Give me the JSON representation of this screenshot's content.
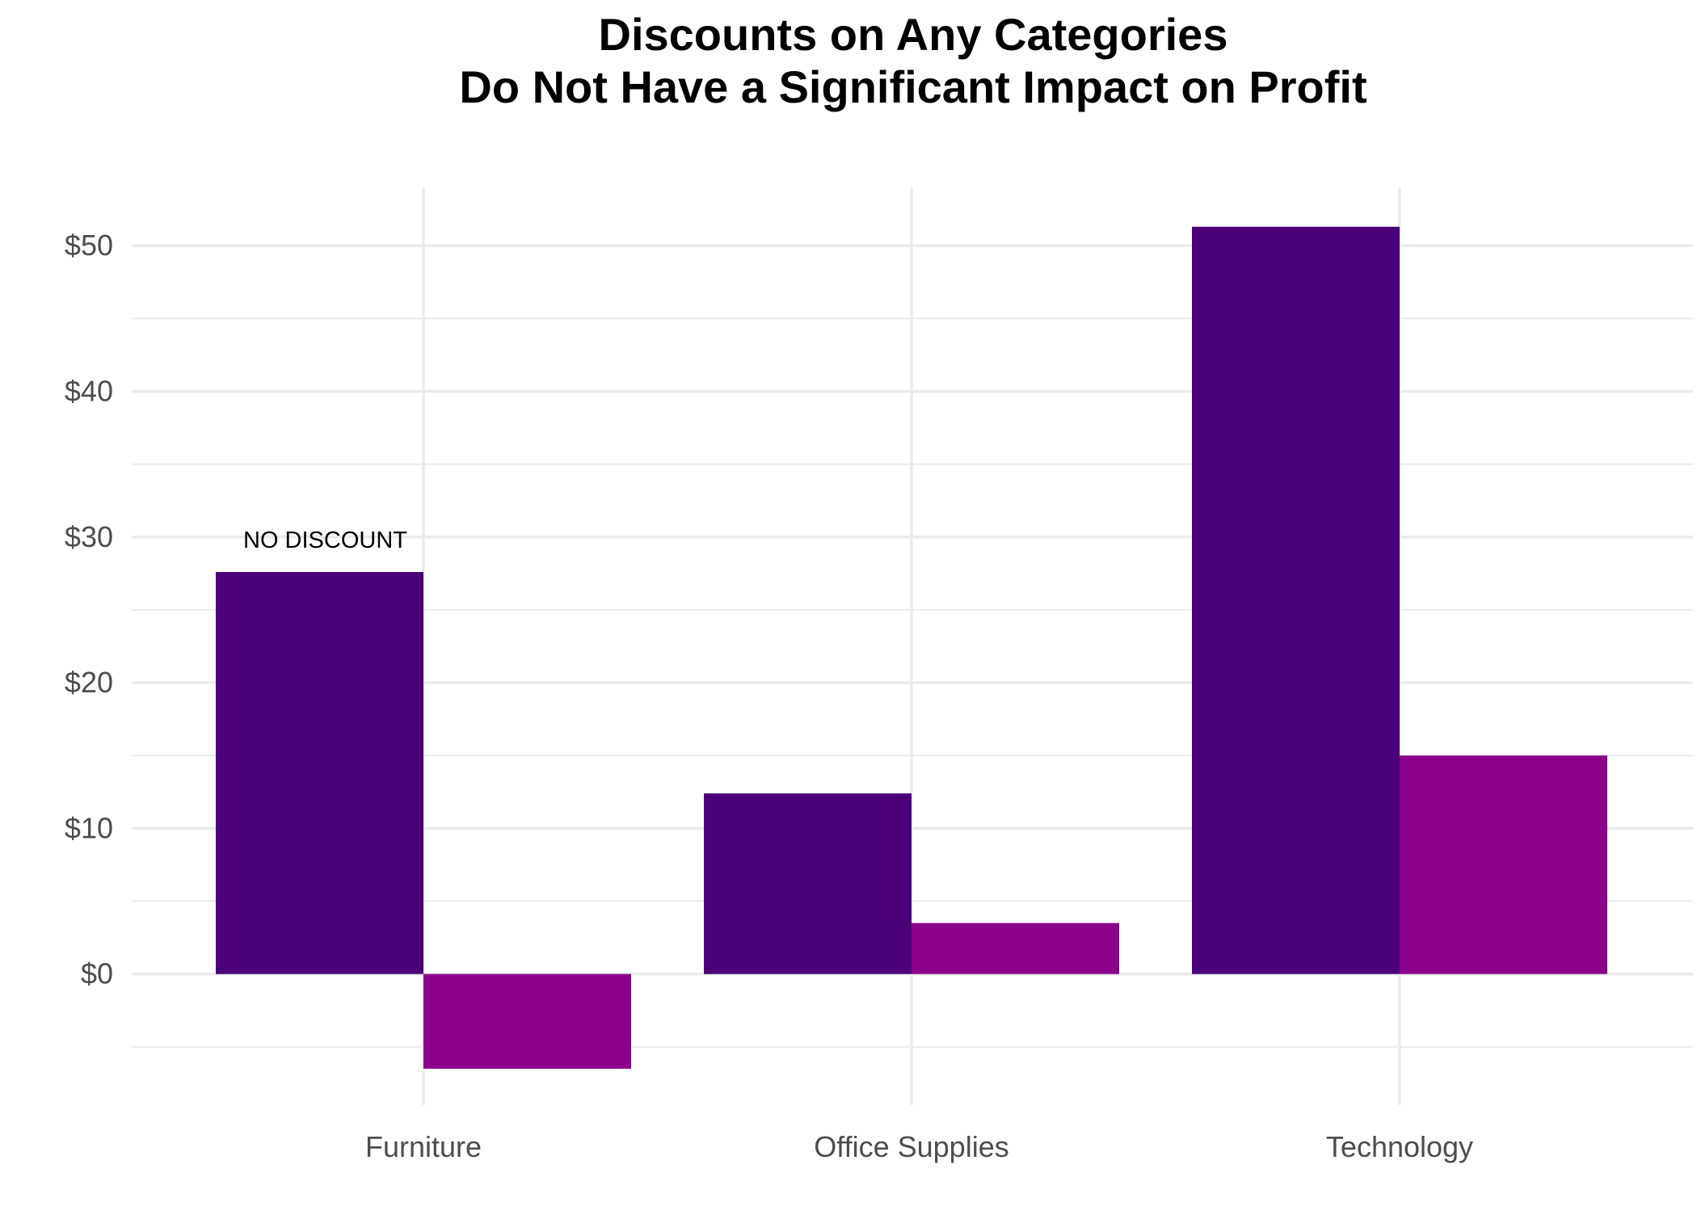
{
  "chart_data": {
    "type": "bar",
    "title": [
      "Discounts on Any Categories",
      "Do Not Have a Significant Impact on Profit"
    ],
    "xlabel": "",
    "ylabel": "",
    "categories": [
      "Furniture",
      "Office Supplies",
      "Technology"
    ],
    "series": [
      {
        "values": [
          27.6,
          12.4,
          51.3
        ],
        "color": "#4b0079"
      },
      {
        "values": [
          -6.5,
          3.5,
          15.0
        ],
        "color": "#8b008b"
      }
    ],
    "ylim": [
      -9,
      54
    ],
    "yticks": [
      0,
      10,
      20,
      30,
      40,
      50
    ],
    "ytick_labels": [
      "$0",
      "$10",
      "$20",
      "$30",
      "$40",
      "$50"
    ],
    "grid": true,
    "legend": "none",
    "annotations": [
      {
        "text": "NO DISCOUNT",
        "category": "Furniture",
        "series": 0
      }
    ]
  }
}
